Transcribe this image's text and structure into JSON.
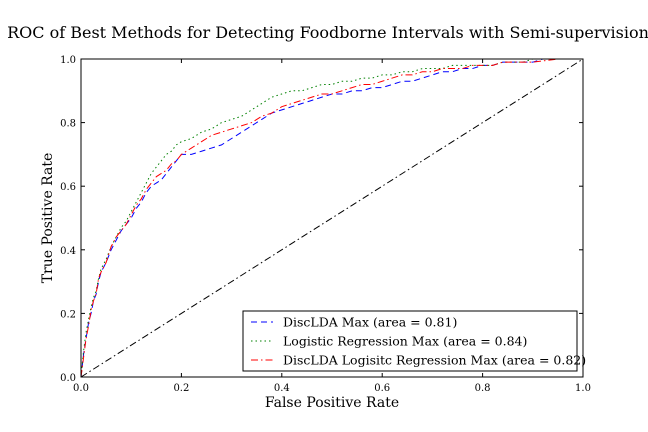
{
  "chart_data": {
    "type": "line",
    "title": "ROC of Best Methods for Detecting Foodborne Intervals with Semi-supervision",
    "xlabel": "False Positive Rate",
    "ylabel": "True Positive Rate",
    "xlim": [
      0.0,
      1.0
    ],
    "ylim": [
      0.0,
      1.0
    ],
    "xticks": [
      "0.0",
      "0.2",
      "0.4",
      "0.6",
      "0.8",
      "1.0"
    ],
    "yticks": [
      "0.0",
      "0.2",
      "0.4",
      "0.6",
      "0.8",
      "1.0"
    ],
    "grid": false,
    "legend_position": "lower right",
    "series": [
      {
        "name": "DiscLDA Max (area = 0.81)",
        "color": "#0000ff",
        "style": "dashed",
        "points": [
          [
            0.0,
            0.0
          ],
          [
            0.005,
            0.07
          ],
          [
            0.01,
            0.12
          ],
          [
            0.015,
            0.17
          ],
          [
            0.02,
            0.2
          ],
          [
            0.025,
            0.24
          ],
          [
            0.03,
            0.26
          ],
          [
            0.035,
            0.3
          ],
          [
            0.04,
            0.33
          ],
          [
            0.05,
            0.36
          ],
          [
            0.06,
            0.4
          ],
          [
            0.07,
            0.43
          ],
          [
            0.08,
            0.46
          ],
          [
            0.09,
            0.48
          ],
          [
            0.1,
            0.5
          ],
          [
            0.11,
            0.53
          ],
          [
            0.12,
            0.55
          ],
          [
            0.13,
            0.58
          ],
          [
            0.14,
            0.6
          ],
          [
            0.15,
            0.61
          ],
          [
            0.16,
            0.62
          ],
          [
            0.17,
            0.64
          ],
          [
            0.18,
            0.66
          ],
          [
            0.19,
            0.68
          ],
          [
            0.2,
            0.7
          ],
          [
            0.22,
            0.7
          ],
          [
            0.24,
            0.71
          ],
          [
            0.26,
            0.72
          ],
          [
            0.28,
            0.73
          ],
          [
            0.3,
            0.75
          ],
          [
            0.32,
            0.77
          ],
          [
            0.34,
            0.79
          ],
          [
            0.36,
            0.81
          ],
          [
            0.38,
            0.83
          ],
          [
            0.4,
            0.84
          ],
          [
            0.42,
            0.85
          ],
          [
            0.44,
            0.86
          ],
          [
            0.46,
            0.87
          ],
          [
            0.48,
            0.88
          ],
          [
            0.5,
            0.89
          ],
          [
            0.52,
            0.89
          ],
          [
            0.54,
            0.9
          ],
          [
            0.56,
            0.9
          ],
          [
            0.58,
            0.91
          ],
          [
            0.6,
            0.91
          ],
          [
            0.62,
            0.92
          ],
          [
            0.64,
            0.93
          ],
          [
            0.66,
            0.93
          ],
          [
            0.68,
            0.94
          ],
          [
            0.7,
            0.95
          ],
          [
            0.72,
            0.96
          ],
          [
            0.74,
            0.96
          ],
          [
            0.76,
            0.97
          ],
          [
            0.78,
            0.97
          ],
          [
            0.8,
            0.98
          ],
          [
            0.82,
            0.98
          ],
          [
            0.84,
            0.99
          ],
          [
            0.86,
            0.99
          ],
          [
            0.88,
            0.99
          ],
          [
            0.9,
            0.99
          ],
          [
            0.92,
            1.0
          ],
          [
            0.95,
            1.0
          ],
          [
            1.0,
            1.0
          ]
        ]
      },
      {
        "name": "Logistic Regression Max (area = 0.84)",
        "color": "#008000",
        "style": "dotted",
        "points": [
          [
            0.0,
            0.0
          ],
          [
            0.005,
            0.08
          ],
          [
            0.01,
            0.14
          ],
          [
            0.015,
            0.18
          ],
          [
            0.02,
            0.22
          ],
          [
            0.025,
            0.25
          ],
          [
            0.03,
            0.27
          ],
          [
            0.035,
            0.31
          ],
          [
            0.04,
            0.34
          ],
          [
            0.05,
            0.37
          ],
          [
            0.06,
            0.41
          ],
          [
            0.07,
            0.44
          ],
          [
            0.08,
            0.47
          ],
          [
            0.09,
            0.49
          ],
          [
            0.1,
            0.52
          ],
          [
            0.11,
            0.55
          ],
          [
            0.12,
            0.58
          ],
          [
            0.13,
            0.61
          ],
          [
            0.14,
            0.64
          ],
          [
            0.15,
            0.66
          ],
          [
            0.16,
            0.68
          ],
          [
            0.17,
            0.7
          ],
          [
            0.18,
            0.71
          ],
          [
            0.19,
            0.73
          ],
          [
            0.2,
            0.74
          ],
          [
            0.22,
            0.75
          ],
          [
            0.24,
            0.77
          ],
          [
            0.26,
            0.78
          ],
          [
            0.28,
            0.8
          ],
          [
            0.3,
            0.81
          ],
          [
            0.32,
            0.82
          ],
          [
            0.34,
            0.84
          ],
          [
            0.36,
            0.86
          ],
          [
            0.38,
            0.88
          ],
          [
            0.4,
            0.89
          ],
          [
            0.42,
            0.9
          ],
          [
            0.44,
            0.9
          ],
          [
            0.46,
            0.91
          ],
          [
            0.48,
            0.92
          ],
          [
            0.5,
            0.92
          ],
          [
            0.52,
            0.93
          ],
          [
            0.54,
            0.93
          ],
          [
            0.56,
            0.94
          ],
          [
            0.58,
            0.94
          ],
          [
            0.6,
            0.95
          ],
          [
            0.62,
            0.95
          ],
          [
            0.64,
            0.96
          ],
          [
            0.66,
            0.96
          ],
          [
            0.68,
            0.97
          ],
          [
            0.7,
            0.97
          ],
          [
            0.72,
            0.97
          ],
          [
            0.74,
            0.98
          ],
          [
            0.76,
            0.98
          ],
          [
            0.78,
            0.98
          ],
          [
            0.8,
            0.98
          ],
          [
            0.82,
            0.98
          ],
          [
            0.84,
            0.99
          ],
          [
            0.86,
            0.99
          ],
          [
            0.88,
            0.99
          ],
          [
            0.9,
            1.0
          ],
          [
            0.95,
            1.0
          ],
          [
            1.0,
            1.0
          ]
        ]
      },
      {
        "name": "DiscLDA Logisitc Regression Max (area = 0.82)",
        "color": "#ff0000",
        "style": "dashdot",
        "points": [
          [
            0.0,
            0.0
          ],
          [
            0.005,
            0.06
          ],
          [
            0.01,
            0.12
          ],
          [
            0.015,
            0.16
          ],
          [
            0.02,
            0.21
          ],
          [
            0.025,
            0.24
          ],
          [
            0.03,
            0.26
          ],
          [
            0.035,
            0.31
          ],
          [
            0.04,
            0.33
          ],
          [
            0.05,
            0.36
          ],
          [
            0.06,
            0.41
          ],
          [
            0.07,
            0.44
          ],
          [
            0.08,
            0.46
          ],
          [
            0.09,
            0.48
          ],
          [
            0.1,
            0.51
          ],
          [
            0.11,
            0.54
          ],
          [
            0.12,
            0.56
          ],
          [
            0.13,
            0.59
          ],
          [
            0.14,
            0.61
          ],
          [
            0.15,
            0.63
          ],
          [
            0.16,
            0.64
          ],
          [
            0.17,
            0.65
          ],
          [
            0.18,
            0.67
          ],
          [
            0.19,
            0.68
          ],
          [
            0.2,
            0.7
          ],
          [
            0.22,
            0.72
          ],
          [
            0.24,
            0.74
          ],
          [
            0.26,
            0.76
          ],
          [
            0.28,
            0.77
          ],
          [
            0.3,
            0.78
          ],
          [
            0.32,
            0.79
          ],
          [
            0.34,
            0.8
          ],
          [
            0.36,
            0.82
          ],
          [
            0.38,
            0.83
          ],
          [
            0.4,
            0.85
          ],
          [
            0.42,
            0.86
          ],
          [
            0.44,
            0.87
          ],
          [
            0.46,
            0.88
          ],
          [
            0.48,
            0.89
          ],
          [
            0.5,
            0.89
          ],
          [
            0.52,
            0.9
          ],
          [
            0.54,
            0.91
          ],
          [
            0.56,
            0.92
          ],
          [
            0.58,
            0.92
          ],
          [
            0.6,
            0.93
          ],
          [
            0.62,
            0.94
          ],
          [
            0.64,
            0.95
          ],
          [
            0.66,
            0.95
          ],
          [
            0.68,
            0.96
          ],
          [
            0.7,
            0.96
          ],
          [
            0.72,
            0.97
          ],
          [
            0.74,
            0.97
          ],
          [
            0.76,
            0.97
          ],
          [
            0.78,
            0.98
          ],
          [
            0.8,
            0.98
          ],
          [
            0.82,
            0.98
          ],
          [
            0.84,
            0.99
          ],
          [
            0.86,
            0.99
          ],
          [
            0.88,
            0.99
          ],
          [
            0.9,
            0.99
          ],
          [
            0.95,
            1.0
          ],
          [
            1.0,
            1.0
          ]
        ]
      }
    ],
    "reference_line": {
      "color": "#000000",
      "style": "dashdot",
      "points": [
        [
          0.0,
          0.0
        ],
        [
          1.0,
          1.0
        ]
      ]
    }
  }
}
